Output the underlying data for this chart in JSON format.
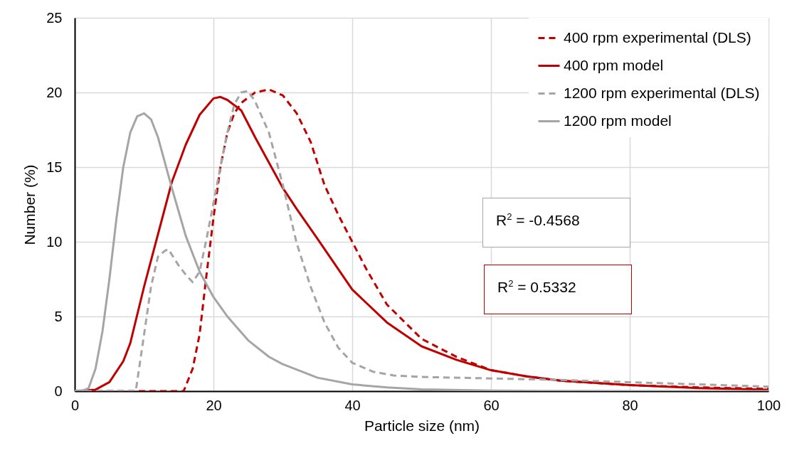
{
  "chart_data": {
    "type": "line",
    "xlabel": "Particle size (nm)",
    "ylabel": "Number (%)",
    "xlim": [
      0,
      100
    ],
    "xticks": [
      0,
      20,
      40,
      60,
      80,
      100
    ],
    "ylim": [
      0,
      25
    ],
    "yticks": [
      0,
      5,
      10,
      15,
      20,
      25
    ],
    "grid": true,
    "legend": "top right",
    "marker": "none",
    "annotations": [
      "R$^{2}$ = -0.4568",
      "R$^{2}$ = 0.5332"
    ],
    "series": [
      {
        "name": "400 rpm experimental (DLS)",
        "color": "#c00000",
        "line_style": "dashed",
        "x": [
          0,
          10,
          15.7,
          17,
          18,
          19,
          20,
          21,
          22,
          23,
          24,
          26,
          28,
          30,
          32,
          34,
          36,
          38,
          40,
          42,
          45,
          50,
          55,
          60,
          65,
          70,
          80,
          90,
          100
        ],
        "values": [
          0,
          0,
          0,
          1.5,
          3.8,
          7.8,
          11.6,
          15,
          17.3,
          18.6,
          19.3,
          20,
          20.2,
          19.8,
          18.6,
          16.7,
          13.8,
          11.8,
          10,
          8.2,
          5.8,
          3.5,
          2.3,
          1.4,
          1,
          0.7,
          0.4,
          0.25,
          0.15
        ]
      },
      {
        "name": "400 rpm model",
        "color": "#c00000",
        "line_style": "solid",
        "x": [
          0,
          3,
          5,
          7,
          8,
          10,
          12,
          14,
          16,
          18,
          20,
          21,
          22,
          24,
          26,
          28,
          30,
          32,
          35,
          40,
          45,
          50,
          55,
          60,
          65,
          70,
          80,
          90,
          100
        ],
        "values": [
          0,
          0.1,
          0.6,
          2,
          3.2,
          7,
          10.5,
          14,
          16.5,
          18.5,
          19.6,
          19.7,
          19.5,
          18.8,
          17,
          15.3,
          13.6,
          12.2,
          10.2,
          6.8,
          4.6,
          3,
          2.1,
          1.4,
          1,
          0.7,
          0.4,
          0.2,
          0.1
        ]
      },
      {
        "name": "1200 rpm experimental (DLS)",
        "color": "#a5a5a5",
        "line_style": "dashed",
        "x": [
          0,
          5,
          8.8,
          10,
          11,
          12,
          13,
          13.5,
          15,
          16,
          17,
          18,
          19,
          20,
          21,
          22,
          23,
          24,
          25,
          26,
          28,
          30,
          32,
          34,
          36,
          38,
          40,
          43,
          46,
          50,
          60,
          70,
          80,
          90,
          100
        ],
        "values": [
          0,
          0,
          0,
          3.8,
          7,
          9,
          9.4,
          9.5,
          8.4,
          7.8,
          7.3,
          8,
          10.2,
          12.6,
          15,
          17.3,
          19.2,
          20,
          20.1,
          19.4,
          17.3,
          13.8,
          9.9,
          7,
          4.6,
          2.9,
          1.9,
          1.3,
          1.05,
          0.95,
          0.85,
          0.75,
          0.6,
          0.45,
          0.3
        ]
      },
      {
        "name": "1200 rpm model",
        "color": "#a5a5a5",
        "line_style": "solid",
        "x": [
          0,
          1,
          2,
          3,
          4,
          5,
          6,
          7,
          8,
          9,
          10,
          11,
          12,
          13,
          14,
          15,
          16,
          18,
          20,
          22,
          25,
          28,
          30,
          35,
          40,
          45,
          50,
          60,
          70,
          80,
          100
        ],
        "values": [
          0,
          0,
          0.2,
          1.5,
          4,
          7.5,
          11.5,
          15,
          17.3,
          18.4,
          18.6,
          18.2,
          17,
          15.3,
          13.6,
          12,
          10.4,
          8,
          6.3,
          5,
          3.4,
          2.3,
          1.8,
          0.9,
          0.45,
          0.25,
          0.12,
          0.04,
          0.01,
          0,
          0
        ]
      }
    ]
  }
}
